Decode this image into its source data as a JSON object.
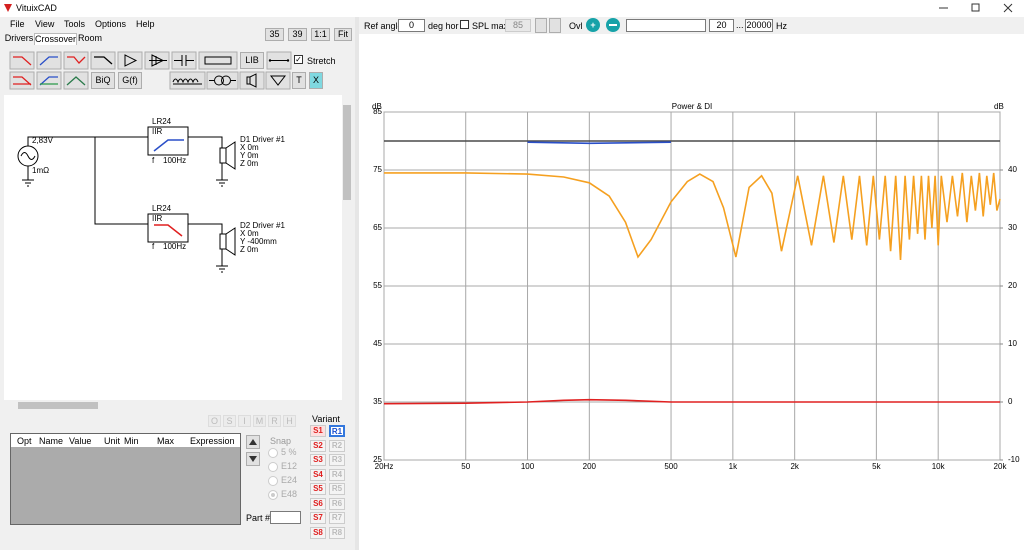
{
  "window": {
    "title": "VituixCAD"
  },
  "menu": [
    "File",
    "View",
    "Tools",
    "Options",
    "Help"
  ],
  "tabs": [
    "Drivers",
    "Crossover",
    "Room"
  ],
  "zoom_buttons": [
    "35",
    "39",
    "1:1",
    "Fit"
  ],
  "toolbar": {
    "biq": "BiQ",
    "gf": "G(f)",
    "lib": "LIB",
    "stretch": "Stretch",
    "t": "T",
    "x": "X"
  },
  "schematic": {
    "source_voltage": "2,83V",
    "source_resistance": "1mΩ",
    "filters": [
      {
        "name": "LR24",
        "kind": "IIR",
        "freq_label": "f",
        "freq": "100Hz"
      },
      {
        "name": "LR24",
        "kind": "IIR",
        "freq_label": "f",
        "freq": "100Hz"
      }
    ],
    "drivers": [
      {
        "name": "D1 Driver #1",
        "x": "X 0m",
        "y": "Y 0m",
        "z": "Z 0m"
      },
      {
        "name": "D2 Driver #1",
        "x": "X 0m",
        "y": "Y -400mm",
        "z": "Z 0m"
      }
    ]
  },
  "params": {
    "mode_buttons": [
      "O",
      "S",
      "I",
      "M",
      "R",
      "H"
    ],
    "columns": [
      "Opt",
      "Name",
      "Value",
      "Unit",
      "Min",
      "Max",
      "Expression"
    ],
    "snap_label": "Snap",
    "snap_options": [
      "5 %",
      "E12",
      "E24",
      "E48"
    ],
    "part_label": "Part #"
  },
  "variant": {
    "label": "Variant",
    "s": [
      "S1",
      "S2",
      "S3",
      "S4",
      "S5",
      "S6",
      "S7",
      "S8"
    ],
    "r": [
      "R1",
      "R2",
      "R3",
      "R4",
      "R5",
      "R6",
      "R7",
      "R8"
    ]
  },
  "chart_toolbar": {
    "ref_angle_label": "Ref angle",
    "ref_angle": "0",
    "deg_label": "deg hor",
    "spl_max_label": "SPL max",
    "spl_max": "85",
    "ovl_label": "Ovl",
    "f_min": "20",
    "range_sep": "...",
    "f_max": "20000",
    "unit": "Hz"
  },
  "chart_data": {
    "type": "line",
    "title": "Power & DI",
    "y_label": "dB",
    "y2_label": "dB",
    "x_scale": "log",
    "grid": true,
    "xlim": [
      20,
      20000
    ],
    "xticks": [
      {
        "value": 20,
        "label": "20Hz"
      },
      50,
      100,
      200,
      500,
      {
        "value": 1000,
        "label": "1k"
      },
      {
        "value": 2000,
        "label": "2k"
      },
      {
        "value": 5000,
        "label": "5k"
      },
      {
        "value": 10000,
        "label": "10k"
      },
      {
        "value": 20000,
        "label": "20k"
      }
    ],
    "ylim": [
      25,
      85
    ],
    "yticks": [
      25,
      35,
      45,
      55,
      65,
      75,
      85
    ],
    "y2lim": [
      -10,
      50
    ],
    "y2ticks": [
      -10,
      0,
      10,
      20,
      30,
      40
    ],
    "series": [
      {
        "color": "#4a4a4a",
        "x": [
          20,
          20000
        ],
        "values": [
          80,
          80
        ]
      },
      {
        "color": "#2a4fc8",
        "x": [
          100,
          200,
          500
        ],
        "values": [
          79.8,
          79.6,
          79.8
        ]
      },
      {
        "color": "#f5a020",
        "x": [
          20,
          50,
          100,
          150,
          200,
          250,
          300,
          345,
          400,
          500,
          600,
          690,
          800,
          900,
          1035,
          1200,
          1380,
          1550,
          1725,
          2070,
          2415,
          2760,
          3105,
          3450,
          3795,
          4140,
          4485,
          4830,
          5175,
          5520,
          5865,
          6210,
          6555,
          6900,
          7245,
          7590,
          7935,
          8280,
          8625,
          8970,
          9315,
          9660,
          10005,
          10350,
          11040,
          11730,
          12420,
          13110,
          13800,
          14490,
          15180,
          15870,
          16560,
          17250,
          17940,
          18630,
          19320,
          20000
        ],
        "values": [
          74.5,
          74.5,
          74.3,
          73.8,
          72.8,
          70.5,
          66,
          60,
          63,
          69.5,
          73,
          74.3,
          73,
          68.5,
          60,
          72,
          74,
          71,
          61,
          74,
          62,
          74,
          62.5,
          74,
          63,
          74,
          62,
          74,
          63,
          74,
          61,
          74,
          59.5,
          74,
          63,
          74,
          64,
          74,
          63,
          74,
          65,
          74,
          62,
          74,
          66,
          74,
          67,
          74.5,
          66,
          74,
          68,
          74.5,
          67,
          74,
          69,
          74.5,
          68,
          70
        ]
      },
      {
        "color": "#e02020",
        "axis": "y2",
        "x": [
          20,
          50,
          100,
          150,
          200,
          300,
          500,
          1000,
          2000,
          5000,
          10000,
          20000
        ],
        "values": [
          -0.3,
          -0.2,
          0,
          0.3,
          0.4,
          0.3,
          0,
          0,
          0,
          0,
          0,
          0
        ]
      }
    ]
  }
}
